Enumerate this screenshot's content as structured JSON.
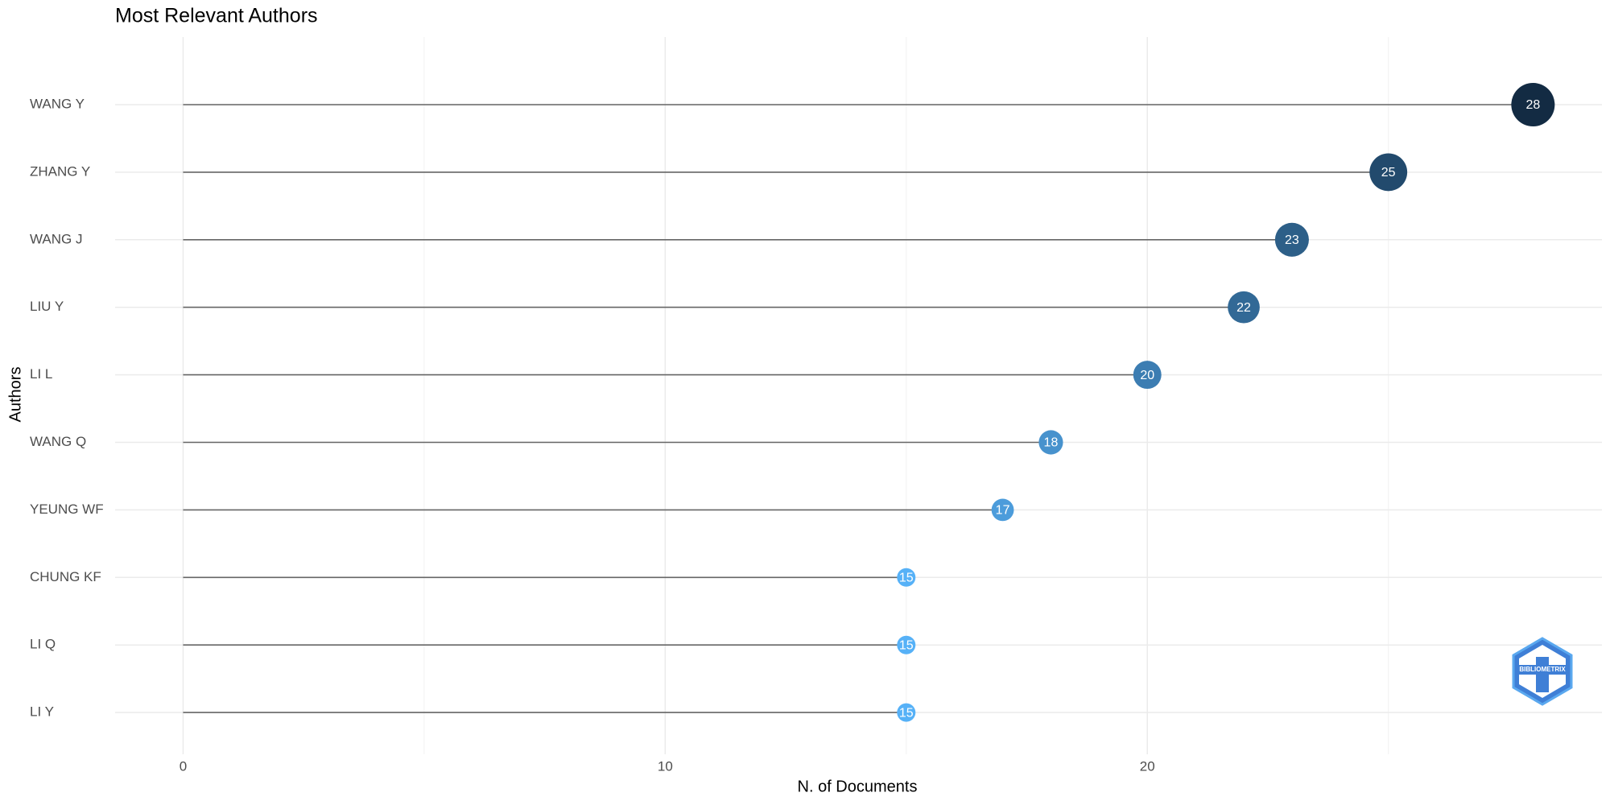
{
  "chart_data": {
    "type": "lollipop",
    "title": "Most Relevant Authors",
    "x_label": "N. of Documents",
    "y_label": "Authors",
    "categories": [
      "WANG Y",
      "ZHANG Y",
      "WANG J",
      "LIU Y",
      "LI L",
      "WANG Q",
      "YEUNG WF",
      "CHUNG KF",
      "LI Q",
      "LI Y"
    ],
    "values": [
      28,
      25,
      23,
      22,
      20,
      18,
      17,
      15,
      15,
      15
    ],
    "xlim": [
      -1.41,
      29.43
    ],
    "xticks": [
      0,
      10,
      20
    ],
    "x_minor_ticks": [
      5,
      15,
      25
    ],
    "grid": true,
    "color_low": "#56b1f7",
    "color_high": "#132b43",
    "stem_color": "#666666"
  },
  "logo": {
    "text": "BIBLIOMETRIX"
  }
}
